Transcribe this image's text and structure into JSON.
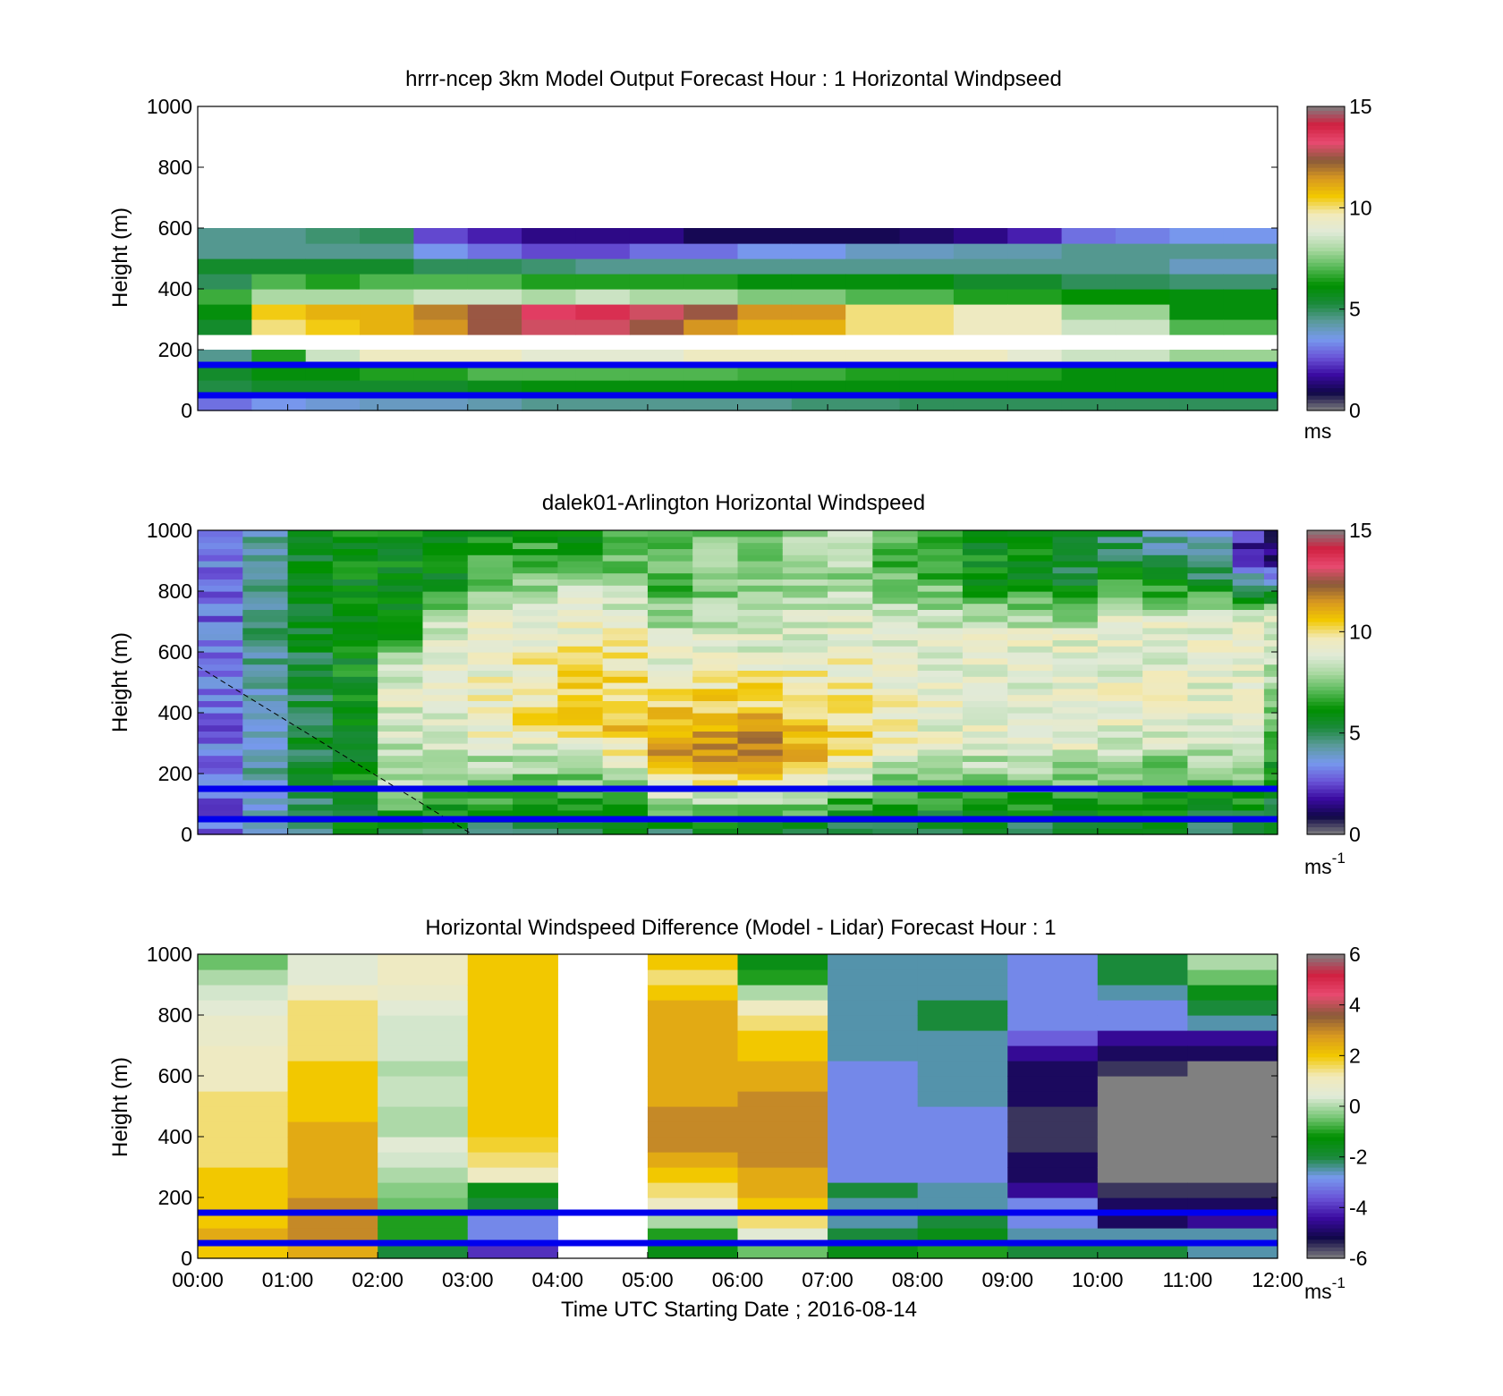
{
  "chart_data": [
    {
      "type": "heatmap",
      "title": "hrrr-ncep 3km Model Output   Forecast Hour : 1 Horizontal Windpseed",
      "ylabel": "Height (m)",
      "ylim": [
        0,
        1000
      ],
      "yticks": [
        "0",
        "200",
        "400",
        "600",
        "800",
        "1000"
      ],
      "x_categories": [
        "00:00",
        "01:00",
        "02:00",
        "03:00",
        "04:00",
        "05:00",
        "06:00",
        "07:00",
        "08:00",
        "09:00",
        "10:00",
        "11:00"
      ],
      "z_units": "ms",
      "colorbar": {
        "range": [
          0,
          15
        ],
        "ticks": [
          "0",
          "5",
          "10",
          "15"
        ]
      },
      "levels": [
        25,
        75,
        125,
        175,
        225,
        275,
        325,
        375,
        425,
        475,
        525,
        575,
        625,
        675,
        725,
        775,
        825,
        875,
        925,
        975
      ],
      "values": [
        [
          3.0,
          5.2,
          5.5,
          4.5,
          null,
          5.5,
          6.0,
          6.8,
          5.0,
          5.5,
          4.5,
          4.5
        ],
        [
          3.5,
          5.5,
          6.0,
          6.5,
          null,
          10.0,
          10.5,
          8.0,
          7.0,
          5.5,
          4.5,
          4.5
        ],
        [
          3.8,
          5.5,
          6.0,
          8.5,
          null,
          10.5,
          11.0,
          8.0,
          6.5,
          5.5,
          4.5,
          4.8
        ],
        [
          4.0,
          5.5,
          6.5,
          9.5,
          null,
          11.0,
          11.0,
          8.0,
          7.0,
          5.5,
          4.5,
          5.0
        ],
        [
          4.0,
          5.5,
          6.5,
          9.5,
          null,
          11.5,
          11.8,
          8.5,
          7.0,
          5.0,
          3.5,
          2.5
        ],
        [
          4.2,
          5.8,
          7.0,
          9.5,
          null,
          12.5,
          12.5,
          8.5,
          7.0,
          5.0,
          3.0,
          2.0
        ],
        [
          4.5,
          6.0,
          7.0,
          9.0,
          null,
          13.0,
          13.5,
          8.0,
          6.5,
          4.8,
          2.5,
          1.5
        ],
        [
          4.5,
          6.0,
          7.0,
          9.0,
          null,
          13.0,
          13.8,
          8.5,
          6.5,
          4.5,
          2.5,
          1.5
        ],
        [
          4.5,
          6.0,
          7.0,
          9.0,
          null,
          12.5,
          13.0,
          8.0,
          6.5,
          4.5,
          3.0,
          1.5
        ],
        [
          4.5,
          6.0,
          7.0,
          9.5,
          null,
          11.5,
          12.5,
          8.0,
          6.5,
          4.5,
          3.0,
          1.0
        ],
        [
          4.5,
          6.0,
          6.8,
          9.5,
          null,
          11.0,
          11.5,
          7.5,
          6.0,
          4.5,
          3.5,
          1.0
        ],
        [
          4.8,
          6.0,
          6.8,
          9.5,
          null,
          11.0,
          11.5,
          7.5,
          6.0,
          4.5,
          3.5,
          1.0
        ],
        [
          4.8,
          6.0,
          6.5,
          9.5,
          null,
          10.0,
          10.0,
          7.0,
          6.0,
          4.5,
          4.0,
          1.0
        ],
        [
          5.0,
          6.0,
          6.5,
          9.5,
          null,
          10.0,
          10.0,
          7.0,
          6.0,
          4.5,
          4.0,
          1.2
        ],
        [
          5.0,
          6.0,
          6.5,
          9.5,
          null,
          9.5,
          9.5,
          6.5,
          5.5,
          4.5,
          4.2,
          1.5
        ],
        [
          5.0,
          6.0,
          6.5,
          9.0,
          null,
          9.5,
          9.5,
          6.5,
          5.5,
          4.5,
          4.2,
          2.0
        ],
        [
          5.0,
          6.0,
          6.0,
          8.5,
          null,
          8.5,
          7.8,
          6.2,
          5.0,
          4.5,
          4.5,
          3.0
        ],
        [
          5.0,
          6.0,
          6.0,
          8.5,
          null,
          8.5,
          7.8,
          6.2,
          5.0,
          4.5,
          4.5,
          3.2
        ],
        [
          5.0,
          6.0,
          6.0,
          7.8,
          null,
          7.0,
          6.0,
          6.0,
          4.8,
          4.0,
          4.5,
          3.5
        ],
        [
          5.0,
          6.0,
          6.0,
          7.8,
          null,
          7.0,
          6.0,
          6.0,
          4.8,
          4.0,
          4.5,
          3.5
        ]
      ],
      "reference_lines_m": [
        50,
        150
      ]
    },
    {
      "type": "heatmap",
      "title": "dalek01-Arlington  Horizontal Windspeed",
      "ylabel": "Height (m)",
      "ylim": [
        0,
        1000
      ],
      "yticks": [
        "0",
        "200",
        "400",
        "600",
        "800",
        "1000"
      ],
      "x_range_hours": [
        0,
        12
      ],
      "z_units": "ms",
      "z_units_sup": "-1",
      "colorbar": {
        "range": [
          0,
          15
        ],
        "ticks": [
          "0",
          "5",
          "10",
          "15"
        ]
      },
      "time_hours": [
        0.0,
        0.5,
        1.0,
        1.5,
        2.0,
        2.5,
        3.0,
        3.5,
        4.0,
        4.5,
        5.0,
        5.5,
        6.0,
        6.5,
        7.0,
        7.5,
        8.0,
        8.5,
        9.0,
        9.5,
        10.0,
        10.5,
        11.0,
        11.5,
        11.85
      ],
      "jet_core_height_m": [
        null,
        null,
        null,
        null,
        150,
        300,
        350,
        380,
        400,
        350,
        250,
        250,
        250,
        250,
        300,
        300,
        300,
        300,
        300,
        300,
        350,
        350,
        350,
        350,
        350
      ],
      "jet_core_speed_ms": [
        3,
        4,
        5,
        6,
        8,
        9,
        9.5,
        10,
        10.5,
        11,
        11.5,
        11.8,
        12,
        11.5,
        10.5,
        9.5,
        9,
        9,
        9,
        9,
        9,
        9,
        9,
        9,
        7
      ],
      "upper_speed_ms": [
        3,
        4.5,
        5.5,
        6,
        6,
        6,
        6.5,
        6.5,
        6.5,
        7,
        7,
        7.5,
        7.5,
        8,
        8,
        7,
        7,
        6,
        6,
        5.5,
        5,
        4.5,
        4,
        2,
        1.5
      ],
      "reference_lines_m": [
        50,
        150
      ]
    },
    {
      "type": "heatmap",
      "title": "Horizontal Windspeed Difference (Model - Lidar) Forecast Hour : 1",
      "xlabel": "Time UTC  Starting Date ; 2016-08-14",
      "ylabel": "Height (m)",
      "ylim": [
        0,
        1000
      ],
      "yticks": [
        "0",
        "200",
        "400",
        "600",
        "800",
        "1000"
      ],
      "xticks": [
        "00:00",
        "01:00",
        "02:00",
        "03:00",
        "04:00",
        "05:00",
        "06:00",
        "07:00",
        "08:00",
        "09:00",
        "10:00",
        "11:00",
        "12:00"
      ],
      "x_categories": [
        "00:00",
        "01:00",
        "02:00",
        "03:00",
        "04:00",
        "05:00",
        "06:00",
        "07:00",
        "08:00",
        "09:00",
        "10:00",
        "11:00"
      ],
      "z_units": "ms",
      "z_units_sup": "-1",
      "colorbar": {
        "range": [
          -6,
          6
        ],
        "ticks": [
          "-6",
          "-4",
          "-2",
          "0",
          "2",
          "4",
          "6"
        ]
      },
      "levels": [
        25,
        75,
        125,
        175,
        225,
        275,
        325,
        375,
        425,
        475,
        525,
        575,
        625,
        675,
        725,
        775,
        825,
        875,
        925,
        975
      ],
      "values": [
        [
          2.0,
          2.5,
          2.0,
          2.0,
          2.0,
          2.0,
          1.5,
          1.5,
          1.5,
          1.5,
          1.5,
          1.0,
          1.0,
          1.0,
          0.8,
          0.8,
          0.5,
          0.3,
          0.0,
          -0.5
        ],
        [
          2.5,
          3.0,
          3.0,
          3.0,
          2.5,
          2.5,
          2.5,
          2.5,
          2.5,
          2.0,
          2.0,
          2.0,
          2.0,
          1.5,
          1.5,
          1.5,
          1.5,
          1.0,
          0.5,
          0.5
        ],
        [
          -2.0,
          -1.0,
          -1.0,
          -0.5,
          -0.3,
          0.0,
          0.3,
          0.5,
          0.0,
          0.0,
          0.2,
          0.2,
          0.0,
          0.3,
          0.3,
          0.3,
          0.5,
          0.8,
          1.0,
          1.0
        ],
        [
          -4.0,
          -3.0,
          -3.0,
          -2.0,
          -1.5,
          1.0,
          1.5,
          1.8,
          2.0,
          2.0,
          2.0,
          2.0,
          2.0,
          2.0,
          2.0,
          2.0,
          2.0,
          2.0,
          2.0,
          2.0
        ],
        [
          null,
          null,
          null,
          null,
          null,
          null,
          null,
          null,
          null,
          null,
          null,
          null,
          null,
          null,
          null,
          null,
          null,
          null,
          null,
          null
        ],
        [
          -1.5,
          -1.0,
          0.0,
          1.0,
          1.5,
          2.0,
          2.5,
          3.0,
          3.0,
          3.0,
          2.5,
          2.5,
          2.5,
          2.5,
          2.5,
          2.5,
          2.5,
          2.0,
          1.5,
          2.0
        ],
        [
          -0.5,
          0.5,
          1.5,
          2.0,
          2.5,
          2.5,
          3.0,
          3.0,
          3.0,
          3.0,
          3.0,
          2.5,
          2.5,
          2.0,
          2.0,
          1.5,
          1.0,
          0.0,
          -1.0,
          -1.5
        ],
        [
          -1.5,
          -2.0,
          -2.5,
          -2.5,
          -2.0,
          -3.0,
          -3.0,
          -3.0,
          -3.0,
          -3.0,
          -3.0,
          -3.0,
          -3.0,
          -2.5,
          -2.5,
          -2.5,
          -2.5,
          -2.5,
          -2.5,
          -2.5
        ],
        [
          -1.0,
          -1.5,
          -2.0,
          -2.5,
          -2.5,
          -3.0,
          -3.0,
          -3.0,
          -3.0,
          -3.0,
          -2.5,
          -2.5,
          -2.5,
          -2.5,
          -2.5,
          -2.0,
          -2.0,
          -2.5,
          -2.5,
          -2.5
        ],
        [
          -2.0,
          -2.5,
          -3.0,
          -3.0,
          -4.5,
          -5.0,
          -5.0,
          -5.5,
          -5.5,
          -5.5,
          -5.0,
          -5.0,
          -5.0,
          -4.5,
          -3.5,
          -3.0,
          -3.0,
          -3.0,
          -3.0,
          -3.0
        ],
        [
          -2.0,
          -2.5,
          -5.0,
          -5.0,
          -5.5,
          -6.5,
          -6.5,
          -6.5,
          -6.5,
          -6.5,
          -6.5,
          -6.5,
          -5.5,
          -5.0,
          -4.5,
          -3.0,
          -3.0,
          -2.5,
          -2.0,
          -2.0
        ],
        [
          -2.5,
          -2.5,
          -4.5,
          -5.0,
          -5.5,
          -6.5,
          -6.5,
          -6.5,
          -6.5,
          -6.5,
          -6.5,
          -6.5,
          -6.5,
          -5.0,
          -4.5,
          -2.5,
          -2.0,
          -1.5,
          -0.5,
          0.0
        ]
      ],
      "reference_lines_m": [
        50,
        150
      ]
    }
  ],
  "colors": {
    "speed_colormap": [
      "#808080",
      "#100848",
      "#3a0aa0",
      "#6a55d8",
      "#7799ee",
      "#5a9a9a",
      "#1a8a3a",
      "#009000",
      "#55b855",
      "#a8d8a0",
      "#e0ead8",
      "#f2eaba",
      "#f2c800",
      "#d89820",
      "#8a5a3a",
      "#e84a70",
      "#d02040",
      "#808080"
    ],
    "diff_colormap": [
      "#808080",
      "#100848",
      "#3a0aa0",
      "#6a55d8",
      "#7799ee",
      "#1a8a3a",
      "#009000",
      "#7ac878",
      "#e0ead8",
      "#f2eaba",
      "#f2c800",
      "#d89820",
      "#8a5a3a",
      "#e84a70",
      "#d02040",
      "#808080"
    ],
    "reference_line": "#0000ee",
    "axis": "#000000"
  }
}
